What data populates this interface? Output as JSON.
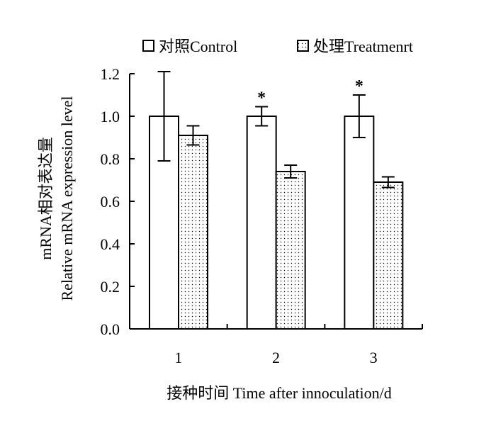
{
  "chart_data": {
    "type": "bar",
    "title": "",
    "xlabel": "接种时间 Time after innoculation/d",
    "ylabel_line1": "mRNA相对表达量",
    "ylabel_line2": "Relative mRNA expression level",
    "categories": [
      "1",
      "2",
      "3"
    ],
    "ylim": [
      0,
      1.2
    ],
    "yticks": [
      "0.0",
      "0.2",
      "0.4",
      "0.6",
      "0.8",
      "1.0",
      "1.2"
    ],
    "grid": false,
    "legend_position": "top",
    "series": [
      {
        "name": "对照Control",
        "values": [
          1.0,
          1.0,
          1.0
        ],
        "errors": [
          0.21,
          0.045,
          0.1
        ],
        "pattern": "blank"
      },
      {
        "name": "处理Treatmenrt",
        "values": [
          0.91,
          0.74,
          0.69
        ],
        "errors": [
          0.045,
          0.03,
          0.025
        ],
        "pattern": "dotted"
      }
    ],
    "annotations": [
      {
        "category": "2",
        "series": "对照Control",
        "text": "*"
      },
      {
        "category": "3",
        "series": "对照Control",
        "text": "*"
      }
    ]
  },
  "colors": {
    "axis": "#000000",
    "bar_stroke": "#000000",
    "bar_fill": "#ffffff",
    "dot": "#000000"
  }
}
